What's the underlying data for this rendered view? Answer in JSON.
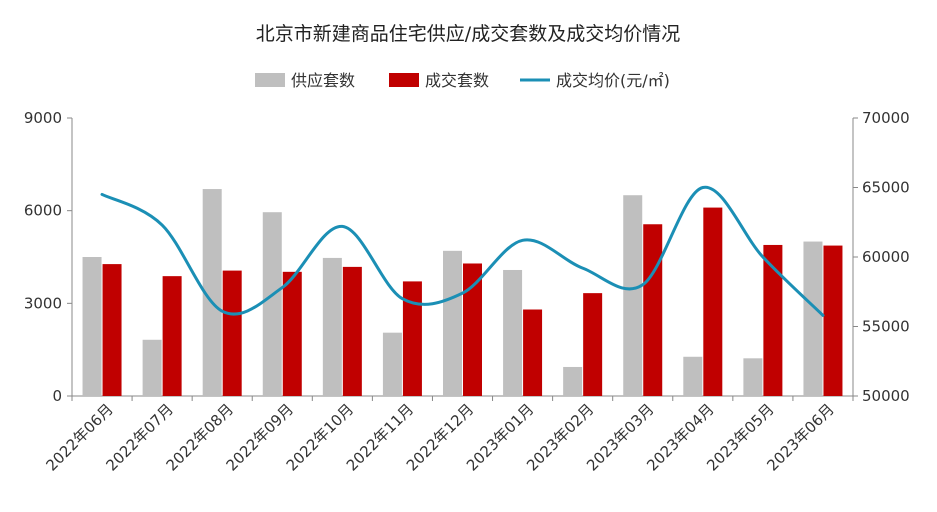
{
  "chart_data": {
    "type": "bar+line",
    "title": "北京市新建商品住宅供应/成交套数及成交均价情况",
    "categories": [
      "2022年06月",
      "2022年07月",
      "2022年08月",
      "2022年09月",
      "2022年10月",
      "2022年11月",
      "2022年12月",
      "2023年01月",
      "2023年02月",
      "2023年03月",
      "2023年04月",
      "2023年05月",
      "2023年06月"
    ],
    "series": [
      {
        "name": "供应套数",
        "type": "bar",
        "axis": "left",
        "color": "#bfbfbf",
        "values": [
          4500,
          1820,
          6700,
          5950,
          4470,
          2050,
          4700,
          4080,
          940,
          6500,
          1270,
          1220,
          5000
        ]
      },
      {
        "name": "成交套数",
        "type": "bar",
        "axis": "left",
        "color": "#c00000",
        "values": [
          4270,
          3880,
          4060,
          4020,
          4180,
          3710,
          4290,
          2800,
          3330,
          5560,
          6100,
          4890,
          4870
        ]
      },
      {
        "name": "成交均价(元/㎡)",
        "type": "line",
        "axis": "right",
        "color": "#1b8fb5",
        "values": [
          64500,
          62300,
          56100,
          57800,
          62200,
          57000,
          57400,
          61200,
          59200,
          58000,
          65000,
          60000,
          55800
        ]
      }
    ],
    "ylim_left": [
      0,
      9000
    ],
    "yticks_left": [
      "9000",
      "6000",
      "3000",
      "0"
    ],
    "ylim_right": [
      50000,
      70000
    ],
    "yticks_right": [
      "70000",
      "65000",
      "60000",
      "55000",
      "50000"
    ]
  }
}
